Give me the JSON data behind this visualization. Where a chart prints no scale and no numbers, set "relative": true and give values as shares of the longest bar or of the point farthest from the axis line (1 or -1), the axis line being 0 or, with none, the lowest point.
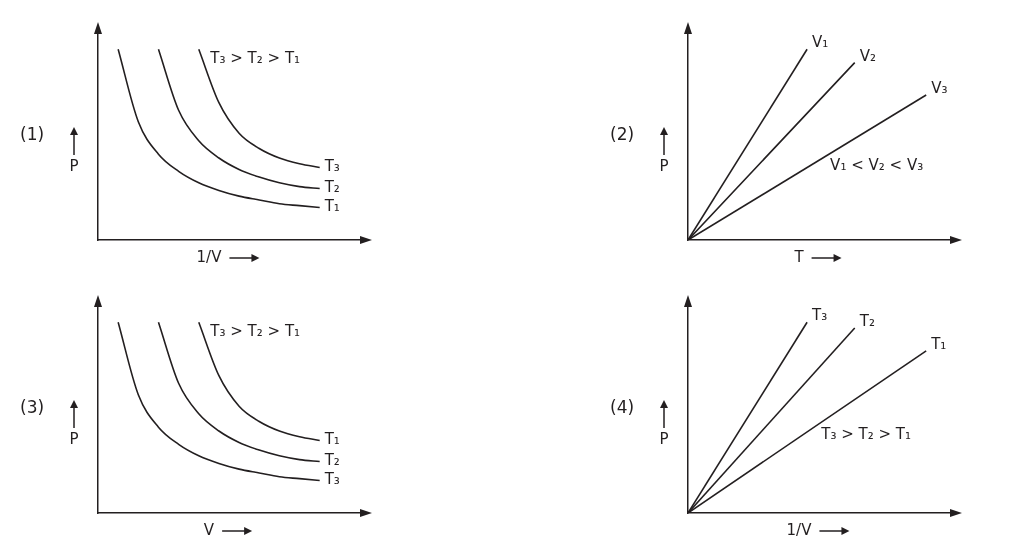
{
  "chart_data": [
    {
      "type": "line",
      "relative": true,
      "xlabel": "1/V",
      "ylabel": "P",
      "annotations": [
        "(1)",
        "T₃ > T₂ > T₁"
      ],
      "categories": [
        null,
        null,
        null,
        null,
        null,
        null,
        null,
        null,
        null,
        null,
        null,
        null,
        null,
        null
      ],
      "series": [
        {
          "name": "T₃",
          "color": "#231f20",
          "values": [
            null,
            null,
            null,
            null,
            null,
            1,
            0.72,
            0.56,
            0.48,
            0.43,
            0.4,
            0.38,
            null,
            null
          ]
        },
        {
          "name": "T₂",
          "color": "#231f20",
          "values": [
            null,
            null,
            null,
            1,
            0.68,
            0.52,
            0.43,
            0.37,
            0.33,
            0.3,
            0.28,
            0.27,
            null,
            null
          ]
        },
        {
          "name": "T₁",
          "color": "#231f20",
          "values": [
            null,
            1,
            0.62,
            0.45,
            0.36,
            0.3,
            0.26,
            0.23,
            0.21,
            0.19,
            0.18,
            0.17,
            null,
            null
          ]
        }
      ]
    },
    {
      "type": "line",
      "relative": true,
      "xlabel": "T",
      "ylabel": "P",
      "annotations": [
        "(2)",
        "V₁ < V₂ < V₃"
      ],
      "categories": [
        null,
        null,
        null,
        null,
        null,
        null,
        null,
        null,
        null,
        null,
        null,
        null
      ],
      "series": [
        {
          "name": "V₁",
          "color": "#231f20",
          "values": [
            0,
            null,
            null,
            null,
            null,
            1,
            null,
            null,
            null,
            null,
            null,
            null
          ]
        },
        {
          "name": "V₂",
          "color": "#231f20",
          "values": [
            0,
            null,
            null,
            null,
            null,
            null,
            null,
            0.93,
            null,
            null,
            null,
            null
          ]
        },
        {
          "name": "V₃",
          "color": "#231f20",
          "values": [
            0,
            null,
            null,
            null,
            null,
            null,
            null,
            null,
            null,
            null,
            0.76,
            null
          ]
        }
      ]
    },
    {
      "type": "line",
      "relative": true,
      "xlabel": "V",
      "ylabel": "P",
      "annotations": [
        "(3)",
        "T₃ > T₂ > T₁"
      ],
      "categories": [
        null,
        null,
        null,
        null,
        null,
        null,
        null,
        null,
        null,
        null,
        null,
        null,
        null,
        null
      ],
      "series": [
        {
          "name": "T₁",
          "color": "#231f20",
          "values": [
            null,
            null,
            null,
            null,
            null,
            1,
            0.72,
            0.56,
            0.48,
            0.43,
            0.4,
            0.38,
            null,
            null
          ]
        },
        {
          "name": "T₂",
          "color": "#231f20",
          "values": [
            null,
            null,
            null,
            1,
            0.68,
            0.52,
            0.43,
            0.37,
            0.33,
            0.3,
            0.28,
            0.27,
            null,
            null
          ]
        },
        {
          "name": "T₃",
          "color": "#231f20",
          "values": [
            null,
            1,
            0.62,
            0.45,
            0.36,
            0.3,
            0.26,
            0.23,
            0.21,
            0.19,
            0.18,
            0.17,
            null,
            null
          ]
        }
      ]
    },
    {
      "type": "line",
      "relative": true,
      "xlabel": "1/V",
      "ylabel": "P",
      "annotations": [
        "(4)",
        "T₃ > T₂ > T₁"
      ],
      "categories": [
        null,
        null,
        null,
        null,
        null,
        null,
        null,
        null,
        null,
        null,
        null,
        null
      ],
      "series": [
        {
          "name": "T₃",
          "color": "#231f20",
          "values": [
            0,
            null,
            null,
            null,
            null,
            1,
            null,
            null,
            null,
            null,
            null,
            null
          ]
        },
        {
          "name": "T₂",
          "color": "#231f20",
          "values": [
            0,
            null,
            null,
            null,
            null,
            null,
            null,
            0.97,
            null,
            null,
            null,
            null
          ]
        },
        {
          "name": "T₁",
          "color": "#231f20",
          "values": [
            0,
            null,
            null,
            null,
            null,
            null,
            null,
            null,
            null,
            null,
            0.85,
            null
          ]
        }
      ]
    }
  ]
}
